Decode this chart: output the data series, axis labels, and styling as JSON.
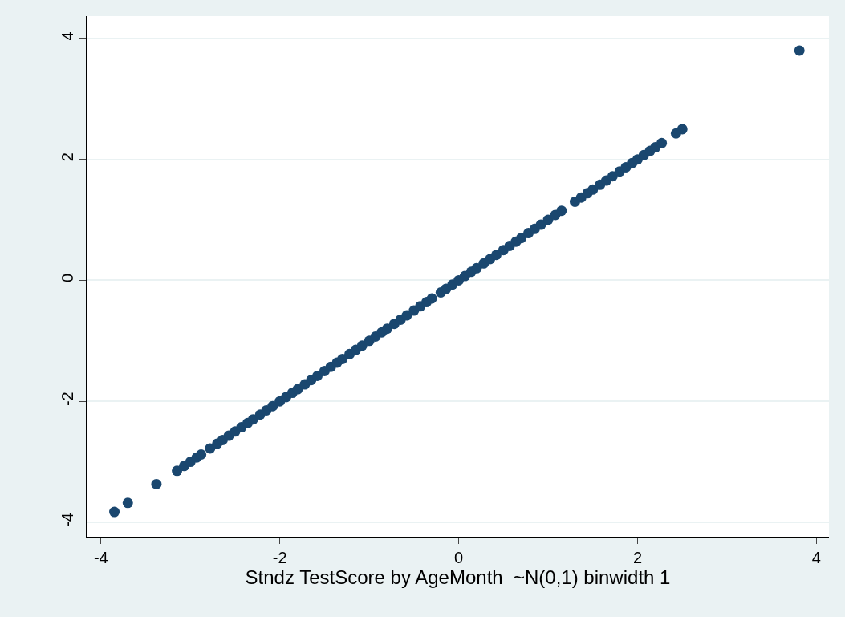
{
  "chart_data": {
    "type": "scatter",
    "xlabel": "Stndz TestScore by AgeMonth  ~N(0,1) binwidth 1",
    "x": [
      -3.85,
      -3.7,
      -3.38,
      -3.15,
      -3.07,
      -3.0,
      -2.93,
      -2.88,
      -2.78,
      -2.7,
      -2.64,
      -2.57,
      -2.5,
      -2.43,
      -2.36,
      -2.3,
      -2.22,
      -2.15,
      -2.08,
      -2.0,
      -1.93,
      -1.86,
      -1.8,
      -1.72,
      -1.65,
      -1.58,
      -1.5,
      -1.43,
      -1.36,
      -1.3,
      -1.22,
      -1.15,
      -1.08,
      -1.0,
      -0.93,
      -0.86,
      -0.8,
      -0.72,
      -0.65,
      -0.58,
      -0.5,
      -0.43,
      -0.36,
      -0.3,
      -0.2,
      -0.14,
      -0.07,
      0,
      0.07,
      0.14,
      0.2,
      0.28,
      0.35,
      0.42,
      0.5,
      0.57,
      0.64,
      0.7,
      0.78,
      0.85,
      0.92,
      1.0,
      1.08,
      1.15,
      1.3,
      1.37,
      1.44,
      1.5,
      1.58,
      1.65,
      1.72,
      1.8,
      1.87,
      1.94,
      2.0,
      2.07,
      2.14,
      2.2,
      2.27,
      2.43,
      2.5,
      3.81
    ],
    "values": [
      -3.83,
      -3.68,
      -3.37,
      -3.15,
      -3.07,
      -3.0,
      -2.93,
      -2.88,
      -2.78,
      -2.7,
      -2.64,
      -2.57,
      -2.5,
      -2.43,
      -2.36,
      -2.3,
      -2.22,
      -2.15,
      -2.08,
      -2.0,
      -1.93,
      -1.86,
      -1.8,
      -1.72,
      -1.65,
      -1.58,
      -1.5,
      -1.43,
      -1.36,
      -1.3,
      -1.22,
      -1.15,
      -1.08,
      -1.0,
      -0.93,
      -0.86,
      -0.8,
      -0.72,
      -0.65,
      -0.58,
      -0.5,
      -0.43,
      -0.36,
      -0.3,
      -0.2,
      -0.14,
      -0.07,
      0,
      0.07,
      0.14,
      0.2,
      0.28,
      0.35,
      0.42,
      0.5,
      0.57,
      0.64,
      0.7,
      0.78,
      0.85,
      0.92,
      1.0,
      1.08,
      1.15,
      1.3,
      1.37,
      1.44,
      1.5,
      1.58,
      1.65,
      1.72,
      1.8,
      1.87,
      1.94,
      2.0,
      2.07,
      2.14,
      2.2,
      2.27,
      2.43,
      2.5,
      3.8
    ],
    "color": "#1a476f",
    "marker": "circle",
    "xlim": [
      -4.16,
      4.14
    ],
    "ylim": [
      -4.24,
      4.37
    ],
    "xticks": [
      -4,
      -2,
      0,
      2,
      4
    ],
    "yticks": [
      -4,
      -2,
      0,
      2,
      4
    ],
    "grid": "y"
  }
}
